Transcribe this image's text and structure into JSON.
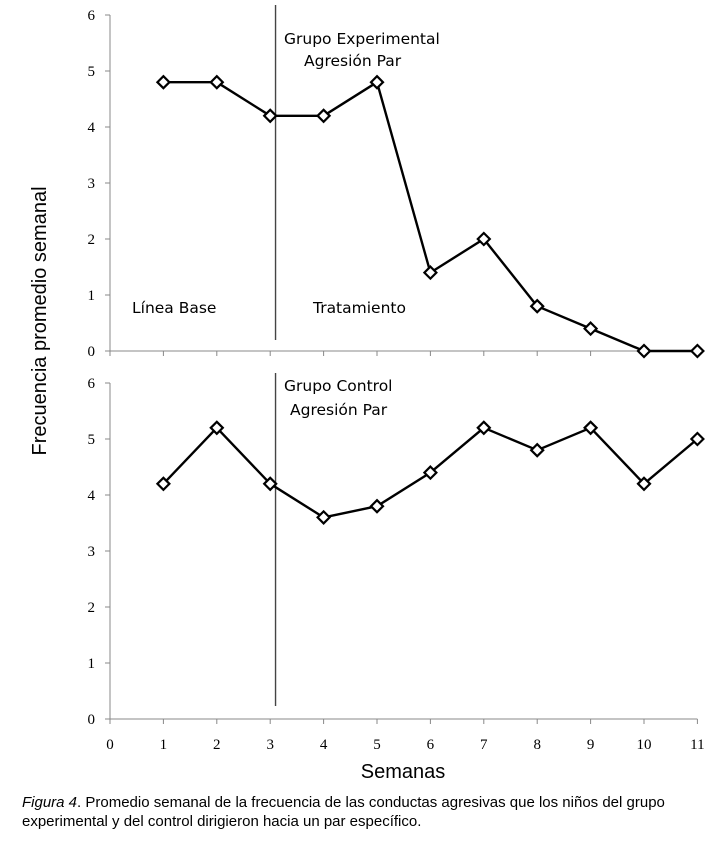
{
  "chart_data": [
    {
      "type": "line",
      "panel": "top",
      "title": "Grupo Experimental",
      "subtitle": "Agresión Par",
      "x": [
        1,
        2,
        3,
        4,
        5,
        6,
        7,
        8,
        9,
        10,
        11
      ],
      "series": [
        {
          "values": [
            4.8,
            4.8,
            4.2,
            4.2,
            4.8,
            1.4,
            2.0,
            0.8,
            0.4,
            0.0,
            0.0
          ]
        }
      ],
      "ylim": [
        0,
        6
      ],
      "yticks": [
        "0",
        "1",
        "2",
        "3",
        "4",
        "5",
        "6"
      ],
      "phase_line_x": 3.1,
      "phase_labels": [
        "Línea Base",
        "Tratamiento"
      ],
      "marker": "diamond-open",
      "grid": false
    },
    {
      "type": "line",
      "panel": "bottom",
      "title": "Grupo Control",
      "subtitle": "Agresión Par",
      "x": [
        1,
        2,
        3,
        4,
        5,
        6,
        7,
        8,
        9,
        10,
        11
      ],
      "series": [
        {
          "values": [
            4.2,
            5.2,
            4.2,
            3.6,
            3.8,
            4.4,
            5.2,
            4.8,
            5.2,
            4.2,
            5.0
          ]
        }
      ],
      "ylim": [
        0,
        6
      ],
      "yticks": [
        "0",
        "1",
        "2",
        "3",
        "4",
        "5",
        "6"
      ],
      "xlim": [
        0,
        11
      ],
      "xticks": [
        "0",
        "1",
        "2",
        "3",
        "4",
        "5",
        "6",
        "7",
        "8",
        "9",
        "10",
        "11"
      ],
      "phase_line_x": 3.1,
      "marker": "diamond-open",
      "grid": false
    }
  ],
  "ylabel": "Frecuencia promedio semanal",
  "xlabel": "Semanas",
  "caption": {
    "figure_label": "Figura 4",
    "text": ". Promedio semanal de la frecuencia de las conductas agresivas que los niños del grupo experimental y del control dirigieron hacia un par específico."
  }
}
